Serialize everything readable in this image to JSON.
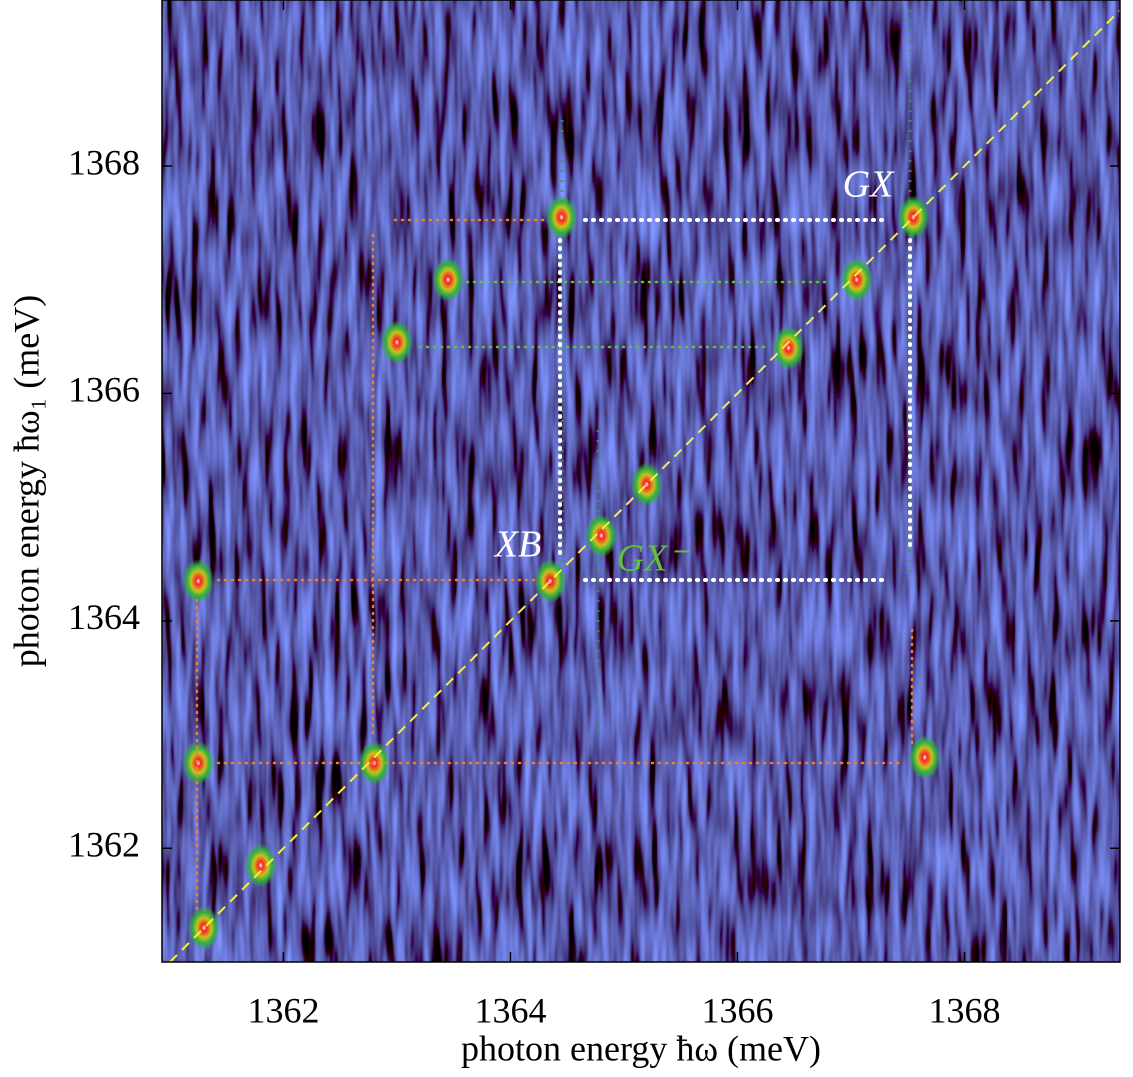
{
  "chart_data": {
    "type": "peak-map",
    "x_label": "photon energy ħω (meV)",
    "y_label": "photon energy ħω₁ (meV)",
    "xlim": [
      1360.93,
      1369.37
    ],
    "ylim": [
      1361.0,
      1369.46
    ],
    "xticks": [
      1362,
      1364,
      1366,
      1368
    ],
    "yticks": [
      1362,
      1364,
      1366,
      1368
    ],
    "diagonal": true,
    "peak_color": "#ff2020",
    "annotations": [
      "GX",
      "XB",
      "GX⁻"
    ],
    "x": [
      1361.3,
      1361.8,
      1362.8,
      1361.25,
      1361.25,
      1364.35,
      1364.8,
      1365.2,
      1364.45,
      1367.55,
      1367.05,
      1363.45,
      1363.0,
      1366.45,
      1367.65
    ],
    "y": [
      1361.3,
      1361.85,
      1362.75,
      1362.75,
      1364.35,
      1364.35,
      1364.75,
      1365.2,
      1367.55,
      1367.55,
      1367.0,
      1367.0,
      1366.45,
      1366.4,
      1362.8
    ]
  }
}
